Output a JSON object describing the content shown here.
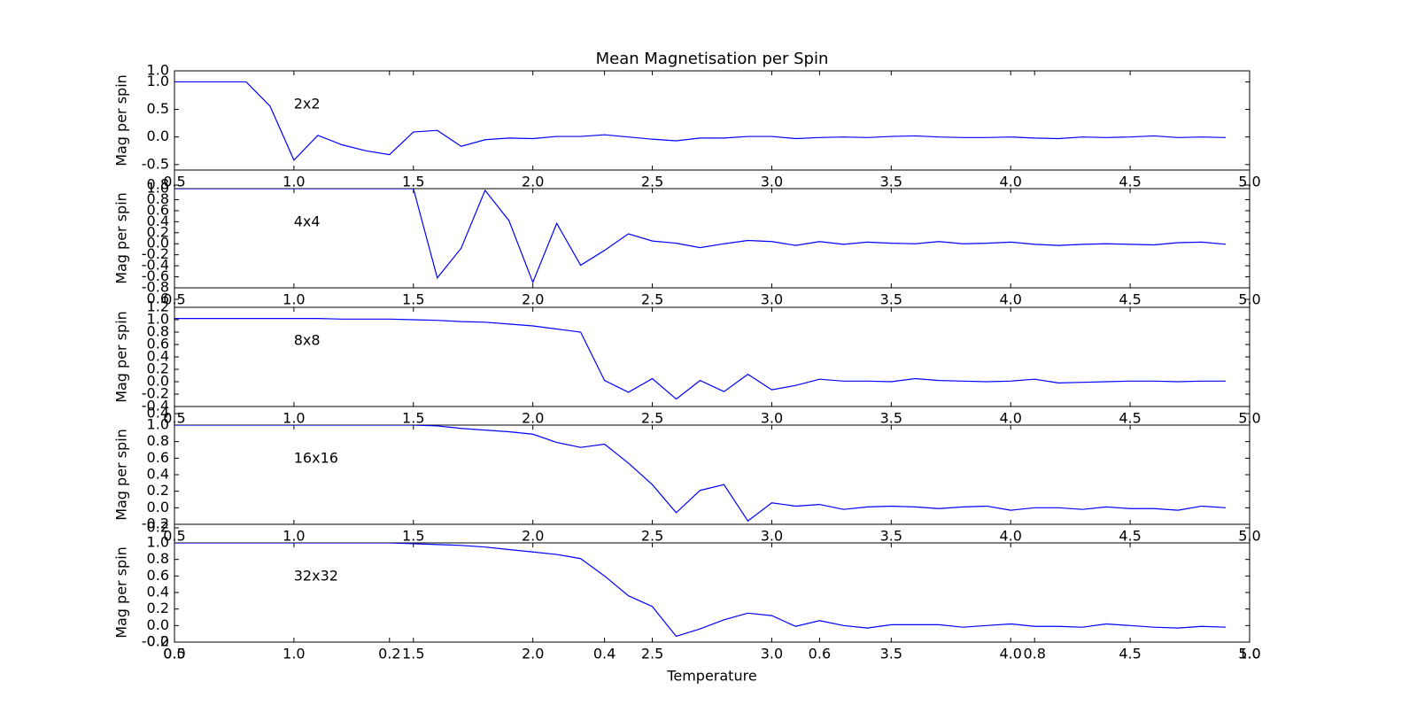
{
  "chart_data": [
    {
      "type": "line",
      "title": "Mean Magnetisation per Spin",
      "ylabel": "Mag per spin",
      "annotation": "2x2",
      "color": "#0000ff",
      "x": [
        0.5,
        0.6,
        0.7,
        0.8,
        0.9,
        1.0,
        1.1,
        1.2,
        1.3,
        1.4,
        1.5,
        1.6,
        1.7,
        1.8,
        1.9,
        2.0,
        2.1,
        2.2,
        2.3,
        2.4,
        2.5,
        2.6,
        2.7,
        2.8,
        2.9,
        3.0,
        3.1,
        3.2,
        3.3,
        3.4,
        3.5,
        3.6,
        3.7,
        3.8,
        3.9,
        4.0,
        4.1,
        4.2,
        4.3,
        4.4,
        4.5,
        4.6,
        4.7,
        4.8,
        4.9
      ],
      "values": [
        1.0,
        1.0,
        1.0,
        1.0,
        0.56,
        -0.42,
        0.03,
        -0.14,
        -0.25,
        -0.32,
        0.09,
        0.12,
        -0.17,
        -0.05,
        -0.02,
        -0.03,
        0.01,
        0.01,
        0.04,
        0.0,
        -0.04,
        -0.07,
        -0.02,
        -0.02,
        0.01,
        0.01,
        -0.03,
        -0.01,
        0.0,
        -0.01,
        0.01,
        0.02,
        0.0,
        -0.01,
        -0.01,
        0.0,
        -0.02,
        -0.03,
        0.0,
        -0.01,
        0.0,
        0.02,
        -0.01,
        0.0,
        -0.01
      ],
      "xlim": [
        0.5,
        5.0
      ],
      "xticks": [
        0.5,
        {
          "value": 1,
          "label": "1.0"
        },
        1.5,
        {
          "value": 2,
          "label": "2.0"
        },
        2.5,
        {
          "value": 3,
          "label": "3.0"
        },
        3.5,
        {
          "value": 4,
          "label": "4.0"
        },
        4.5,
        {
          "value": 5,
          "label": "5.0"
        }
      ],
      "ylim": [
        -0.6,
        1.2
      ],
      "yticks": [
        {
          "value": -0.5,
          "label": "-0.5"
        },
        {
          "value": 0,
          "label": "0.0"
        },
        0.5,
        {
          "value": 1,
          "label": "1.0"
        }
      ]
    },
    {
      "type": "line",
      "ylabel": "Mag per spin",
      "annotation": "4x4",
      "color": "#0000ff",
      "x": [
        0.5,
        0.6,
        0.7,
        0.8,
        0.9,
        1.0,
        1.1,
        1.2,
        1.3,
        1.4,
        1.5,
        1.6,
        1.7,
        1.8,
        1.9,
        2.0,
        2.1,
        2.2,
        2.3,
        2.4,
        2.5,
        2.6,
        2.7,
        2.8,
        2.9,
        3.0,
        3.1,
        3.2,
        3.3,
        3.4,
        3.5,
        3.6,
        3.7,
        3.8,
        3.9,
        4.0,
        4.1,
        4.2,
        4.3,
        4.4,
        4.5,
        4.6,
        4.7,
        4.8,
        4.9
      ],
      "values": [
        1.0,
        1.0,
        1.0,
        1.0,
        1.0,
        1.0,
        1.0,
        1.0,
        1.0,
        1.0,
        1.0,
        -0.62,
        -0.08,
        0.97,
        0.42,
        -0.7,
        0.37,
        -0.39,
        -0.12,
        0.18,
        0.05,
        0.01,
        -0.07,
        0.0,
        0.06,
        0.04,
        -0.03,
        0.04,
        -0.01,
        0.03,
        0.01,
        0.0,
        0.04,
        0.0,
        0.01,
        0.03,
        -0.01,
        -0.03,
        -0.01,
        0.0,
        -0.01,
        -0.02,
        0.02,
        0.03,
        -0.01
      ],
      "xlim": [
        0.5,
        5.0
      ],
      "xticks": [
        0.5,
        {
          "value": 1,
          "label": "1.0"
        },
        1.5,
        {
          "value": 2,
          "label": "2.0"
        },
        2.5,
        {
          "value": 3,
          "label": "3.0"
        },
        3.5,
        {
          "value": 4,
          "label": "4.0"
        },
        4.5,
        {
          "value": 5,
          "label": "5.0"
        }
      ],
      "ylim": [
        -0.8,
        1.0
      ],
      "yticks": [
        -0.8,
        -0.6,
        -0.4,
        -0.2,
        {
          "value": 0,
          "label": "0.0"
        },
        0.2,
        0.4,
        0.6,
        0.8,
        {
          "value": 1,
          "label": "1.0"
        }
      ]
    },
    {
      "type": "line",
      "ylabel": "Mag per spin",
      "annotation": "8x8",
      "color": "#0000ff",
      "x": [
        0.5,
        0.6,
        0.7,
        0.8,
        0.9,
        1.0,
        1.1,
        1.2,
        1.3,
        1.4,
        1.5,
        1.6,
        1.7,
        1.8,
        1.9,
        2.0,
        2.1,
        2.2,
        2.3,
        2.4,
        2.5,
        2.6,
        2.7,
        2.8,
        2.9,
        3.0,
        3.1,
        3.2,
        3.3,
        3.4,
        3.5,
        3.6,
        3.7,
        3.8,
        3.9,
        4.0,
        4.1,
        4.2,
        4.3,
        4.4,
        4.5,
        4.6,
        4.7,
        4.8,
        4.9
      ],
      "values": [
        1.02,
        1.02,
        1.02,
        1.02,
        1.02,
        1.02,
        1.02,
        1.01,
        1.01,
        1.01,
        1.0,
        0.99,
        0.97,
        0.96,
        0.93,
        0.9,
        0.85,
        0.8,
        0.02,
        -0.17,
        0.05,
        -0.28,
        0.02,
        -0.16,
        0.12,
        -0.13,
        -0.06,
        0.04,
        0.01,
        0.01,
        0.0,
        0.05,
        0.02,
        0.01,
        0.0,
        0.01,
        0.04,
        -0.02,
        -0.01,
        0.0,
        0.01,
        0.01,
        0.0,
        0.01,
        0.01
      ],
      "xlim": [
        0.5,
        5.0
      ],
      "xticks": [
        0.5,
        {
          "value": 1,
          "label": "1.0"
        },
        1.5,
        {
          "value": 2,
          "label": "2.0"
        },
        2.5,
        {
          "value": 3,
          "label": "3.0"
        },
        3.5,
        {
          "value": 4,
          "label": "4.0"
        },
        4.5,
        {
          "value": 5,
          "label": "5.0"
        }
      ],
      "ylim": [
        -0.4,
        1.2
      ],
      "yticks": [
        -0.4,
        -0.2,
        {
          "value": 0,
          "label": "0.0"
        },
        0.2,
        0.4,
        0.6,
        0.8,
        {
          "value": 1,
          "label": "1.0"
        },
        1.2
      ]
    },
    {
      "type": "line",
      "ylabel": "Mag per spin",
      "annotation": "16x16",
      "color": "#0000ff",
      "x": [
        0.5,
        0.6,
        0.7,
        0.8,
        0.9,
        1.0,
        1.1,
        1.2,
        1.3,
        1.4,
        1.5,
        1.6,
        1.7,
        1.8,
        1.9,
        2.0,
        2.1,
        2.2,
        2.3,
        2.4,
        2.5,
        2.6,
        2.7,
        2.8,
        2.9,
        3.0,
        3.1,
        3.2,
        3.3,
        3.4,
        3.5,
        3.6,
        3.7,
        3.8,
        3.9,
        4.0,
        4.1,
        4.2,
        4.3,
        4.4,
        4.5,
        4.6,
        4.7,
        4.8,
        4.9
      ],
      "values": [
        1.0,
        1.0,
        1.0,
        1.0,
        1.0,
        1.0,
        1.0,
        1.0,
        1.0,
        1.0,
        1.0,
        0.99,
        0.96,
        0.94,
        0.92,
        0.89,
        0.79,
        0.73,
        0.77,
        0.54,
        0.28,
        -0.06,
        0.21,
        0.28,
        -0.16,
        0.06,
        0.02,
        0.04,
        -0.02,
        0.01,
        0.02,
        0.01,
        -0.01,
        0.01,
        0.02,
        -0.03,
        0.0,
        0.0,
        -0.02,
        0.01,
        -0.01,
        -0.01,
        -0.03,
        0.02,
        0.0
      ],
      "xlim": [
        0.5,
        5.0
      ],
      "xticks": [
        0.5,
        {
          "value": 1,
          "label": "1.0"
        },
        1.5,
        {
          "value": 2,
          "label": "2.0"
        },
        2.5,
        {
          "value": 3,
          "label": "3.0"
        },
        3.5,
        {
          "value": 4,
          "label": "4.0"
        },
        4.5,
        {
          "value": 5,
          "label": "5.0"
        }
      ],
      "ylim": [
        -0.2,
        1.0
      ],
      "yticks": [
        -0.2,
        {
          "value": 0,
          "label": "0.0"
        },
        0.2,
        0.4,
        0.6,
        0.8,
        {
          "value": 1,
          "label": "1.0"
        }
      ]
    },
    {
      "type": "line",
      "ylabel": "Mag per spin",
      "annotation": "32x32",
      "color": "#0000ff",
      "x": [
        0.5,
        0.6,
        0.7,
        0.8,
        0.9,
        1.0,
        1.1,
        1.2,
        1.3,
        1.4,
        1.5,
        1.6,
        1.7,
        1.8,
        1.9,
        2.0,
        2.1,
        2.2,
        2.3,
        2.4,
        2.5,
        2.6,
        2.7,
        2.8,
        2.9,
        3.0,
        3.1,
        3.2,
        3.3,
        3.4,
        3.5,
        3.6,
        3.7,
        3.8,
        3.9,
        4.0,
        4.1,
        4.2,
        4.3,
        4.4,
        4.5,
        4.6,
        4.7,
        4.8,
        4.9
      ],
      "values": [
        1.0,
        1.0,
        1.0,
        1.0,
        1.0,
        1.0,
        1.0,
        1.0,
        1.0,
        1.0,
        0.99,
        0.98,
        0.97,
        0.95,
        0.92,
        0.89,
        0.86,
        0.81,
        0.6,
        0.36,
        0.23,
        -0.13,
        -0.04,
        0.07,
        0.15,
        0.12,
        -0.01,
        0.06,
        0.0,
        -0.03,
        0.01,
        0.01,
        0.01,
        -0.02,
        0.0,
        0.02,
        -0.01,
        -0.01,
        -0.02,
        0.02,
        0.0,
        -0.02,
        -0.03,
        -0.01,
        -0.02
      ],
      "xlim": [
        0.5,
        5.0
      ],
      "xticks": [
        0.5,
        {
          "value": 1,
          "label": "1.0"
        },
        1.5,
        {
          "value": 2,
          "label": "2.0"
        },
        2.5,
        {
          "value": 3,
          "label": "3.0"
        },
        3.5,
        {
          "value": 4,
          "label": "4.0"
        },
        4.5,
        {
          "value": 5,
          "label": "5.0"
        }
      ],
      "ylim": [
        -0.2,
        1.0
      ],
      "yticks": [
        -0.2,
        {
          "value": 0,
          "label": "0.0"
        },
        0.2,
        0.4,
        0.6,
        0.8,
        {
          "value": 1,
          "label": "1.0"
        }
      ]
    },
    {
      "type": "axes",
      "xlabel": "Temperature",
      "xlim": [
        0,
        1
      ],
      "xticks": [
        {
          "value": 0,
          "label": "0.0"
        },
        0.2,
        0.4,
        0.6,
        0.8,
        {
          "value": 1,
          "label": "1.0"
        }
      ],
      "ylim": [
        0,
        1
      ],
      "yticks": [
        {
          "value": 0,
          "label": "0.0"
        },
        0.2,
        0.4,
        0.6,
        0.8,
        {
          "value": 1,
          "label": "1.0"
        }
      ]
    }
  ]
}
